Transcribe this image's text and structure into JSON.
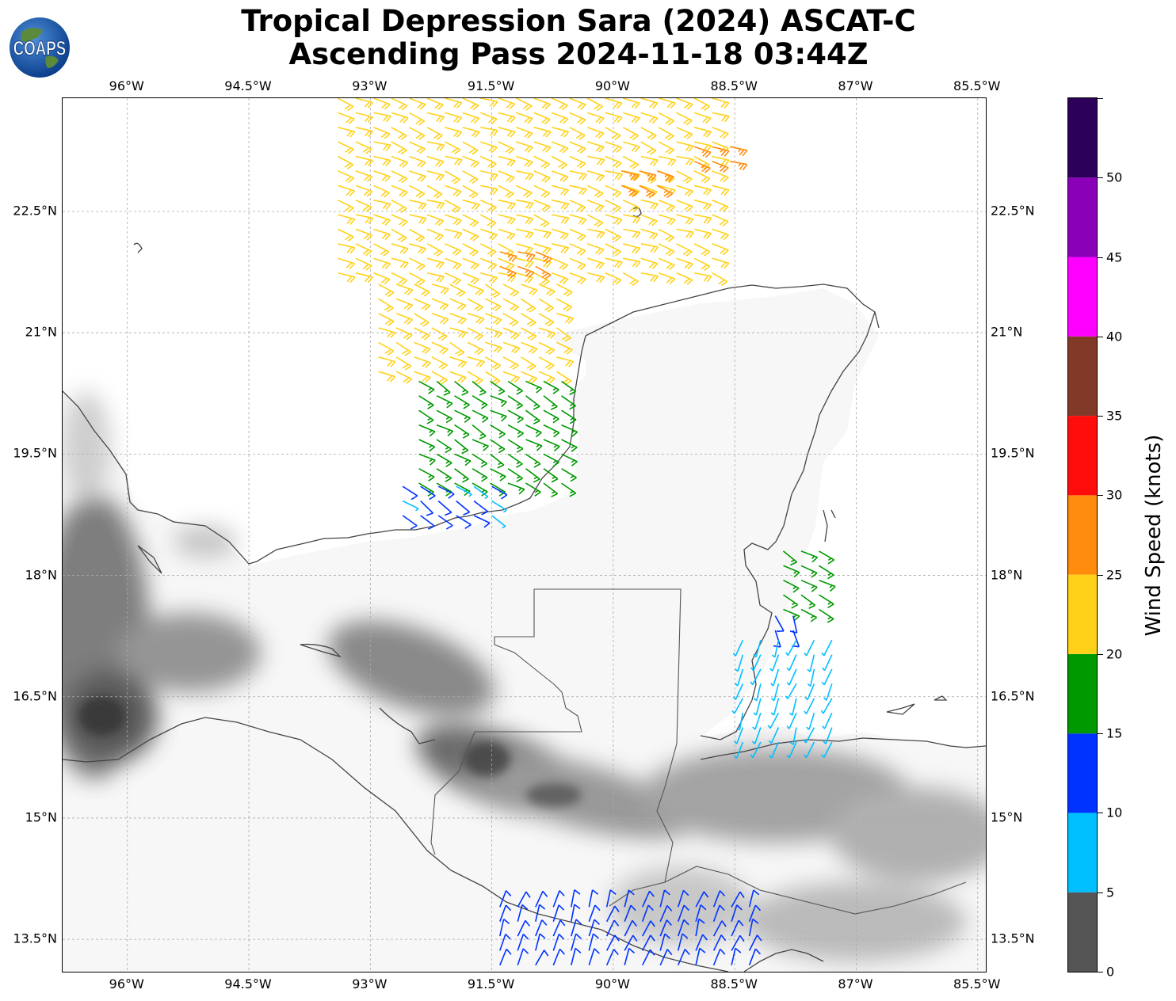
{
  "header": {
    "title_line1": "Tropical Depression Sara (2024) ASCAT-C",
    "title_line2": "Ascending Pass 2024-11-18 03:44Z",
    "logo_text": "COAPS"
  },
  "map": {
    "lon_ticks": [
      "96°W",
      "94.5°W",
      "93°W",
      "91.5°W",
      "90°W",
      "88.5°W",
      "87°W",
      "85.5°W"
    ],
    "lat_ticks": [
      "22.5°N",
      "21°N",
      "19.5°N",
      "18°N",
      "16.5°N",
      "15°N",
      "13.5°N"
    ],
    "lon_values": [
      -96,
      -94.5,
      -93,
      -91.5,
      -90,
      -88.5,
      -87,
      -85.5
    ],
    "lat_values": [
      22.5,
      21,
      19.5,
      18,
      16.5,
      15,
      13.5
    ],
    "extent": {
      "lon_min": -96.8,
      "lon_max": -85.4,
      "lat_min": 13.1,
      "lat_max": 23.9
    },
    "gridlines": true,
    "coastline_color": "#444444",
    "terrain": "grayscale shaded relief"
  },
  "colorbar": {
    "label": "Wind Speed (knots)",
    "tick_labels": [
      "0",
      "5",
      "10",
      "15",
      "20",
      "25",
      "30",
      "35",
      "40",
      "45",
      "50"
    ],
    "tick_values": [
      0,
      5,
      10,
      15,
      20,
      25,
      30,
      35,
      40,
      45,
      50
    ],
    "max_value": 55,
    "bins": [
      {
        "min": 0,
        "max": 5,
        "color": "#555555"
      },
      {
        "min": 5,
        "max": 10,
        "color": "#00bfff"
      },
      {
        "min": 10,
        "max": 15,
        "color": "#0033ff"
      },
      {
        "min": 15,
        "max": 20,
        "color": "#009900"
      },
      {
        "min": 20,
        "max": 25,
        "color": "#ffd21a"
      },
      {
        "min": 25,
        "max": 30,
        "color": "#ff8c0d"
      },
      {
        "min": 30,
        "max": 35,
        "color": "#ff0d0d"
      },
      {
        "min": 35,
        "max": 40,
        "color": "#823a28"
      },
      {
        "min": 40,
        "max": 45,
        "color": "#ff00ff"
      },
      {
        "min": 45,
        "max": 50,
        "color": "#8a00b8"
      },
      {
        "min": 50,
        "max": 55,
        "color": "#2c0059"
      }
    ]
  },
  "wind_regions": [
    {
      "name": "gulf-north",
      "lon_min": -93.4,
      "lon_max": -88.7,
      "lat_min": 21.6,
      "lat_max": 23.9,
      "speed": 22,
      "dir": 110
    },
    {
      "name": "gulf-mid",
      "lon_min": -92.9,
      "lon_max": -90.6,
      "lat_min": 20.4,
      "lat_max": 21.6,
      "speed": 22,
      "dir": 115
    },
    {
      "name": "gulf-south",
      "lon_min": -92.4,
      "lon_max": -90.6,
      "lat_min": 19.0,
      "lat_max": 20.4,
      "speed": 17,
      "dir": 120
    },
    {
      "name": "gulf-edge",
      "lon_min": -92.6,
      "lon_max": -91.4,
      "lat_min": 18.7,
      "lat_max": 19.1,
      "speed": 11,
      "dir": 125
    },
    {
      "name": "orange-patch-1",
      "lon_min": -89.9,
      "lon_max": -89.3,
      "lat_min": 22.8,
      "lat_max": 23.0,
      "speed": 27,
      "dir": 110
    },
    {
      "name": "orange-patch-2",
      "lon_min": -89.0,
      "lon_max": -88.5,
      "lat_min": 23.1,
      "lat_max": 23.3,
      "speed": 27,
      "dir": 110
    },
    {
      "name": "orange-patch-3",
      "lon_min": -91.4,
      "lon_max": -90.9,
      "lat_min": 21.8,
      "lat_max": 22.0,
      "speed": 26,
      "dir": 110
    },
    {
      "name": "belize-north",
      "lon_min": -87.9,
      "lon_max": -87.4,
      "lat_min": 17.5,
      "lat_max": 18.3,
      "speed": 18,
      "dir": 120
    },
    {
      "name": "belize-blue",
      "lon_min": -88.0,
      "lon_max": -87.6,
      "lat_min": 17.2,
      "lat_max": 17.5,
      "speed": 12,
      "dir": 160
    },
    {
      "name": "belize-south",
      "lon_min": -88.4,
      "lon_max": -87.3,
      "lat_min": 15.8,
      "lat_max": 17.2,
      "speed": 8,
      "dir": 200
    },
    {
      "name": "guatemala-pacific",
      "lon_min": -91.4,
      "lon_max": -88.2,
      "lat_min": 13.1,
      "lat_max": 13.9,
      "speed": 13,
      "dir": 20
    }
  ]
}
